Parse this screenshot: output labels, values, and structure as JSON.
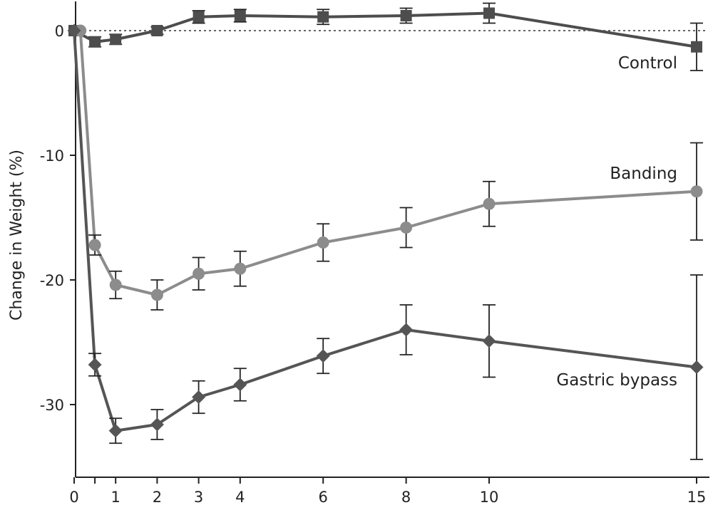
{
  "chart_data": {
    "type": "line",
    "title": "",
    "xlabel": "",
    "ylabel": "Change in Weight (%)",
    "xlim": [
      0,
      15
    ],
    "ylim": [
      -36,
      2.5
    ],
    "xticks": [
      0,
      1,
      2,
      3,
      4,
      6,
      8,
      10,
      15
    ],
    "xtick_labels": [
      "0",
      "1",
      "2",
      "3",
      "4",
      "6",
      "8",
      "10",
      "15"
    ],
    "yticks": [
      0,
      -10,
      -20,
      -30
    ],
    "ytick_labels": [
      "0",
      "-10",
      "-20",
      "-30"
    ],
    "reference_line": {
      "y": 0,
      "style": "dotted"
    },
    "grid": false,
    "series": [
      {
        "name": "Control",
        "marker": "square",
        "color": "#4d4d4d",
        "points": [
          {
            "x": 0,
            "y": 0
          },
          {
            "x": 0.5,
            "y": -0.9,
            "err": 0.4
          },
          {
            "x": 1,
            "y": -0.7,
            "err": 0.4
          },
          {
            "x": 2,
            "y": 0,
            "err": 0.3
          },
          {
            "x": 3,
            "y": 1.1,
            "err": 0.5
          },
          {
            "x": 4,
            "y": 1.2,
            "err": 0.5
          },
          {
            "x": 6,
            "y": 1.1,
            "err": 0.6
          },
          {
            "x": 8,
            "y": 1.2,
            "err": 0.6
          },
          {
            "x": 10,
            "y": 1.4,
            "err": 0.8
          },
          {
            "x": 15,
            "y": -1.3,
            "err": 1.9
          }
        ]
      },
      {
        "name": "Banding",
        "marker": "circle",
        "color": "#8c8c8c",
        "points": [
          {
            "x": 0.15,
            "y": 0
          },
          {
            "x": 0.5,
            "y": -17.2,
            "err": 0.8
          },
          {
            "x": 1,
            "y": -20.4,
            "err": 1.1
          },
          {
            "x": 2,
            "y": -21.2,
            "err": 1.2
          },
          {
            "x": 3,
            "y": -19.5,
            "err": 1.3
          },
          {
            "x": 4,
            "y": -19.1,
            "err": 1.4
          },
          {
            "x": 6,
            "y": -17.0,
            "err": 1.5
          },
          {
            "x": 8,
            "y": -15.8,
            "err": 1.6
          },
          {
            "x": 10,
            "y": -13.9,
            "err": 1.8
          },
          {
            "x": 15,
            "y": -12.9,
            "err": 3.9
          }
        ]
      },
      {
        "name": "Gastric bypass",
        "marker": "diamond",
        "color": "#555555",
        "points": [
          {
            "x": 0,
            "y": 0
          },
          {
            "x": 0.5,
            "y": -26.8,
            "err": 0.9
          },
          {
            "x": 1,
            "y": -32.1,
            "err": 1.0
          },
          {
            "x": 2,
            "y": -31.6,
            "err": 1.2
          },
          {
            "x": 3,
            "y": -29.4,
            "err": 1.3
          },
          {
            "x": 4,
            "y": -28.4,
            "err": 1.3
          },
          {
            "x": 6,
            "y": -26.1,
            "err": 1.4
          },
          {
            "x": 8,
            "y": -24.0,
            "err": 2.0
          },
          {
            "x": 10,
            "y": -24.9,
            "err": 2.9
          },
          {
            "x": 15,
            "y": -27.0,
            "err": 7.4
          }
        ]
      }
    ]
  },
  "labels": {
    "control": "Control",
    "banding": "Banding",
    "bypass": "Gastric bypass"
  }
}
